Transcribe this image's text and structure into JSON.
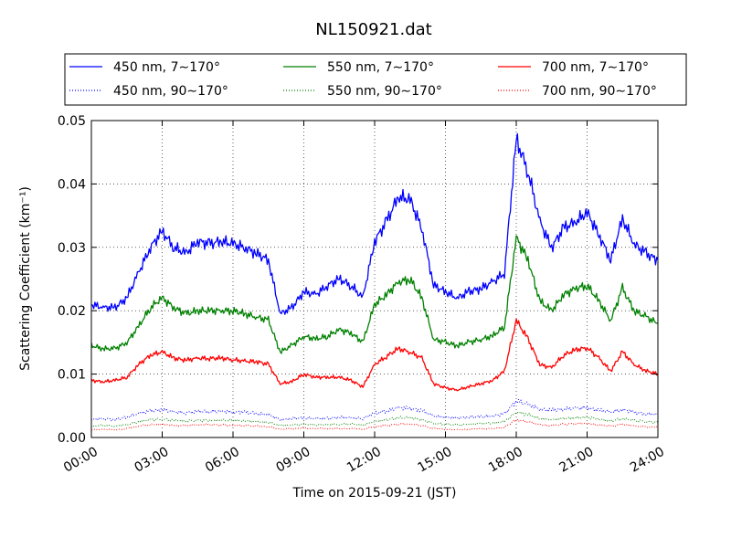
{
  "chart_data": {
    "type": "line",
    "title": "NL150921.dat",
    "xlabel": "Time on 2015-09-21 (JST)",
    "ylabel": "Scattering Coefficient (km⁻¹)",
    "xlim": [
      "00:00",
      "24:00"
    ],
    "ylim": [
      0,
      0.05
    ],
    "grid": true,
    "legend_placement": "top",
    "x_ticks": [
      "00:00",
      "03:00",
      "06:00",
      "09:00",
      "12:00",
      "15:00",
      "18:00",
      "21:00",
      "24:00"
    ],
    "y_ticks": [
      "0.00",
      "0.01",
      "0.02",
      "0.03",
      "0.04",
      "0.05"
    ],
    "x_hours": [
      0,
      0.5,
      1,
      1.5,
      2,
      2.5,
      3,
      3.5,
      4,
      4.5,
      5,
      5.5,
      6,
      6.5,
      7,
      7.5,
      8,
      8.5,
      9,
      9.5,
      10,
      10.5,
      11,
      11.5,
      12,
      12.5,
      13,
      13.5,
      14,
      14.5,
      15,
      15.5,
      16,
      16.5,
      17,
      17.5,
      18,
      18.5,
      19,
      19.5,
      20,
      20.5,
      21,
      21.5,
      22,
      22.5,
      23,
      23.5,
      24
    ],
    "series": [
      {
        "name": "450 nm, 7∼170°",
        "color": "#0000ff",
        "style": "solid",
        "values": [
          0.021,
          0.0205,
          0.0205,
          0.022,
          0.026,
          0.03,
          0.0325,
          0.03,
          0.029,
          0.031,
          0.0305,
          0.031,
          0.0305,
          0.03,
          0.029,
          0.028,
          0.0195,
          0.0205,
          0.023,
          0.0225,
          0.024,
          0.025,
          0.024,
          0.022,
          0.031,
          0.034,
          0.038,
          0.0375,
          0.033,
          0.024,
          0.023,
          0.022,
          0.023,
          0.0235,
          0.0245,
          0.026,
          0.047,
          0.042,
          0.034,
          0.03,
          0.033,
          0.034,
          0.0355,
          0.032,
          0.028,
          0.0345,
          0.0305,
          0.029,
          0.028
        ]
      },
      {
        "name": "550 nm, 7∼170°",
        "color": "#008000",
        "style": "solid",
        "values": [
          0.0145,
          0.014,
          0.014,
          0.015,
          0.0175,
          0.0205,
          0.022,
          0.0205,
          0.0195,
          0.02,
          0.02,
          0.02,
          0.02,
          0.0195,
          0.019,
          0.0185,
          0.0135,
          0.0145,
          0.016,
          0.0155,
          0.016,
          0.017,
          0.0165,
          0.015,
          0.021,
          0.0225,
          0.0245,
          0.025,
          0.022,
          0.0155,
          0.015,
          0.0145,
          0.015,
          0.0155,
          0.016,
          0.0175,
          0.0315,
          0.028,
          0.0215,
          0.02,
          0.0225,
          0.0235,
          0.024,
          0.0215,
          0.0185,
          0.0235,
          0.02,
          0.019,
          0.018
        ]
      },
      {
        "name": "700 nm, 7∼170°",
        "color": "#ff0000",
        "style": "solid",
        "values": [
          0.009,
          0.0088,
          0.009,
          0.0095,
          0.0115,
          0.013,
          0.0135,
          0.0125,
          0.0122,
          0.0125,
          0.0125,
          0.0125,
          0.0123,
          0.012,
          0.012,
          0.0115,
          0.0085,
          0.0088,
          0.01,
          0.0095,
          0.0095,
          0.0095,
          0.009,
          0.008,
          0.0115,
          0.0128,
          0.014,
          0.0135,
          0.0125,
          0.0085,
          0.0078,
          0.0075,
          0.008,
          0.0085,
          0.009,
          0.0105,
          0.0185,
          0.0155,
          0.0115,
          0.011,
          0.013,
          0.0138,
          0.0142,
          0.0125,
          0.0105,
          0.0135,
          0.0115,
          0.0105,
          0.01
        ]
      },
      {
        "name": "450 nm, 90∼170°",
        "color": "#0000ff",
        "style": "dotted",
        "values": [
          0.0028,
          0.003,
          0.0028,
          0.0032,
          0.0038,
          0.0042,
          0.0044,
          0.004,
          0.0039,
          0.0041,
          0.0041,
          0.0041,
          0.004,
          0.004,
          0.0038,
          0.0036,
          0.0028,
          0.003,
          0.0031,
          0.003,
          0.003,
          0.0032,
          0.0031,
          0.003,
          0.0038,
          0.0042,
          0.0047,
          0.0046,
          0.0042,
          0.0034,
          0.0032,
          0.0031,
          0.0032,
          0.0033,
          0.0034,
          0.0037,
          0.0058,
          0.0052,
          0.0045,
          0.0043,
          0.0045,
          0.0046,
          0.0047,
          0.0043,
          0.004,
          0.0044,
          0.004,
          0.0037,
          0.0036
        ]
      },
      {
        "name": "550 nm, 90∼170°",
        "color": "#008000",
        "style": "dotted",
        "values": [
          0.0018,
          0.0019,
          0.0018,
          0.002,
          0.0025,
          0.0028,
          0.0029,
          0.0027,
          0.0026,
          0.0027,
          0.0027,
          0.0027,
          0.0027,
          0.0026,
          0.0025,
          0.0024,
          0.0019,
          0.002,
          0.0021,
          0.002,
          0.002,
          0.0021,
          0.0021,
          0.002,
          0.0025,
          0.0028,
          0.0031,
          0.0031,
          0.0028,
          0.0022,
          0.0021,
          0.002,
          0.0021,
          0.0022,
          0.0023,
          0.0025,
          0.004,
          0.0036,
          0.003,
          0.0028,
          0.003,
          0.0031,
          0.0032,
          0.0029,
          0.0026,
          0.003,
          0.0027,
          0.0025,
          0.0024
        ]
      },
      {
        "name": "700 nm, 90∼170°",
        "color": "#ff0000",
        "style": "dotted",
        "values": [
          0.0012,
          0.0013,
          0.0012,
          0.0014,
          0.0018,
          0.002,
          0.0021,
          0.0019,
          0.0019,
          0.002,
          0.002,
          0.002,
          0.0019,
          0.0019,
          0.0018,
          0.0017,
          0.0013,
          0.0014,
          0.0015,
          0.0014,
          0.0014,
          0.0014,
          0.0014,
          0.0013,
          0.0017,
          0.0019,
          0.0021,
          0.0021,
          0.0019,
          0.0014,
          0.0013,
          0.0012,
          0.0013,
          0.0014,
          0.0014,
          0.0016,
          0.0028,
          0.0025,
          0.002,
          0.0019,
          0.0021,
          0.0022,
          0.0022,
          0.002,
          0.0018,
          0.0021,
          0.0018,
          0.0017,
          0.0016
        ]
      }
    ],
    "legend": [
      {
        "label": "450 nm, 7∼170°",
        "series": 0
      },
      {
        "label": "550 nm, 7∼170°",
        "series": 1
      },
      {
        "label": "700 nm, 7∼170°",
        "series": 2
      },
      {
        "label": "450 nm, 90∼170°",
        "series": 3
      },
      {
        "label": "550 nm, 90∼170°",
        "series": 4
      },
      {
        "label": "700 nm, 90∼170°",
        "series": 5
      }
    ]
  }
}
